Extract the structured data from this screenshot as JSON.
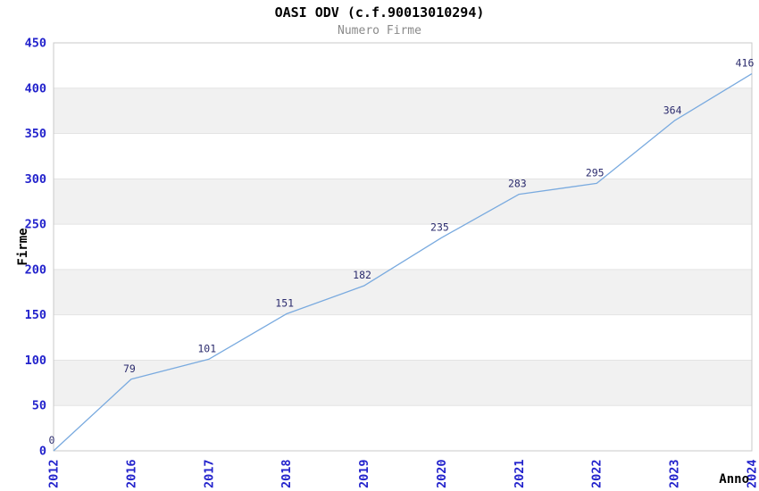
{
  "chart_data": {
    "type": "line",
    "title": "OASI ODV (c.f.90013010294)",
    "subtitle": "Numero Firme",
    "categories": [
      "2012",
      "2016",
      "2017",
      "2018",
      "2019",
      "2020",
      "2021",
      "2022",
      "2023",
      "2024"
    ],
    "values": [
      0,
      79,
      101,
      151,
      182,
      235,
      283,
      295,
      364,
      416
    ],
    "xlabel": "Anno",
    "ylabel": "Firme",
    "ylim": [
      0,
      450
    ],
    "ytick_step": 50,
    "grid": "horizontal-only",
    "bands": "alternating-gray-white",
    "legend": "none",
    "colors": {
      "line": "#79aadf",
      "tick_label": "#2323cc",
      "data_label": "#2c2c6e",
      "band": "#f1f1f1",
      "gridline": "#e3e3e3",
      "border": "#c9c9c9",
      "title": "#000000",
      "subtitle": "#8a8a8a",
      "axis_title": "#000000",
      "background": "#ffffff"
    }
  }
}
